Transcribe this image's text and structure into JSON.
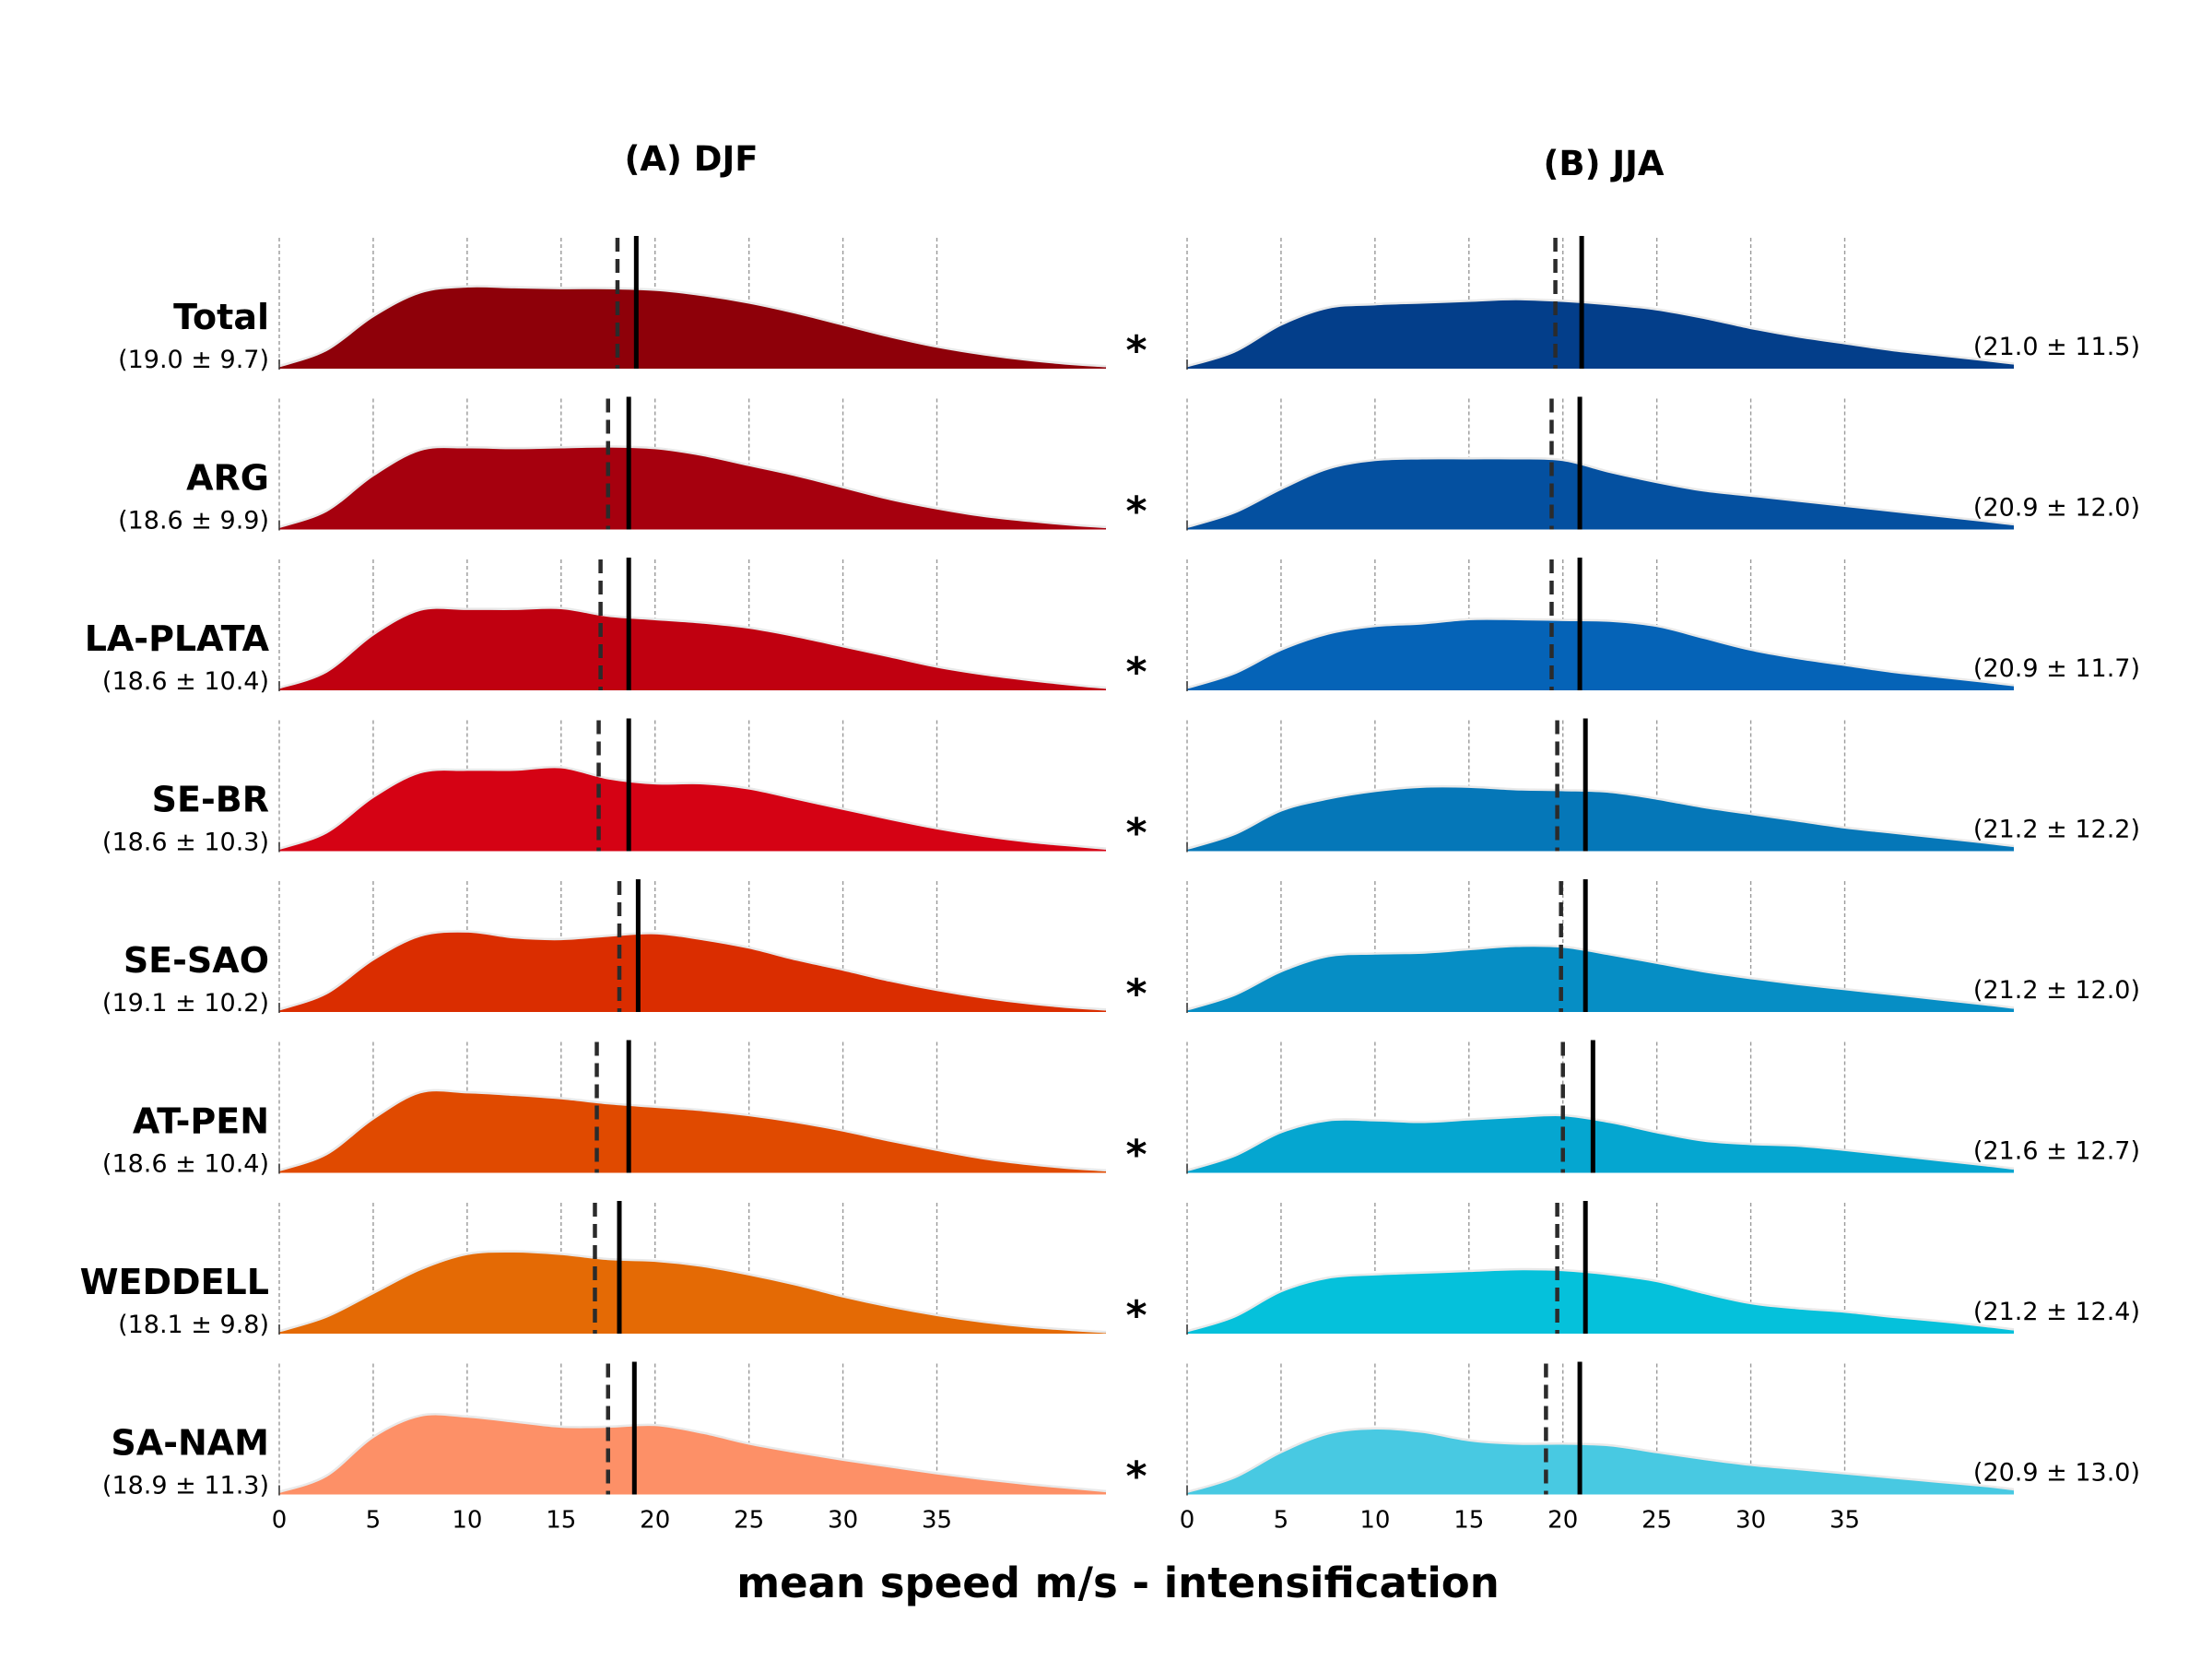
{
  "chart_data": {
    "type": "area",
    "xlabel": "mean speed m/s - intensification",
    "x_ticks": [
      0,
      5,
      10,
      15,
      20,
      25,
      30,
      35
    ],
    "xlim": [
      0,
      44
    ],
    "grid": "vertical dashed",
    "markers": {
      "solid": "mean",
      "dashed": "median"
    },
    "kde_x": [
      0,
      2.5,
      5,
      7.5,
      10,
      12.5,
      15,
      17.5,
      20,
      22.5,
      25,
      27.5,
      30,
      32.5,
      35,
      37.5,
      40,
      42.5,
      44
    ],
    "panels": [
      {
        "title": "(A) DJF",
        "rows": [
          {
            "name": "Total",
            "stats": "(19.0 ± 9.7)",
            "mean": 19.0,
            "median": 18.0,
            "color": "#8e0009",
            "significant": "*",
            "density": [
              0.03,
              0.22,
              0.62,
              0.9,
              0.97,
              0.96,
              0.95,
              0.95,
              0.93,
              0.87,
              0.78,
              0.66,
              0.52,
              0.38,
              0.26,
              0.17,
              0.1,
              0.05,
              0.03
            ]
          },
          {
            "name": "ARG",
            "stats": "(18.6 ± 9.9)",
            "mean": 18.6,
            "median": 17.5,
            "color": "#a6000e",
            "significant": "*",
            "density": [
              0.03,
              0.22,
              0.64,
              0.94,
              0.97,
              0.96,
              0.97,
              0.98,
              0.96,
              0.88,
              0.76,
              0.64,
              0.5,
              0.36,
              0.25,
              0.16,
              0.1,
              0.05,
              0.03
            ]
          },
          {
            "name": "LA-PLATA",
            "stats": "(18.6 ± 10.4)",
            "mean": 18.6,
            "median": 17.1,
            "color": "#c00010",
            "significant": "*",
            "density": [
              0.03,
              0.22,
              0.66,
              0.95,
              0.96,
              0.96,
              0.97,
              0.88,
              0.84,
              0.8,
              0.74,
              0.64,
              0.52,
              0.4,
              0.28,
              0.19,
              0.12,
              0.06,
              0.03
            ]
          },
          {
            "name": "SE-BR",
            "stats": "(18.6 ± 10.3)",
            "mean": 18.6,
            "median": 17.0,
            "color": "#d50214",
            "significant": "*",
            "density": [
              0.03,
              0.22,
              0.64,
              0.93,
              0.96,
              0.96,
              0.99,
              0.86,
              0.8,
              0.8,
              0.74,
              0.62,
              0.5,
              0.38,
              0.27,
              0.18,
              0.11,
              0.06,
              0.03
            ]
          },
          {
            "name": "SE-SAO",
            "stats": "(19.1 ± 10.2)",
            "mean": 19.1,
            "median": 18.1,
            "color": "#da2d00",
            "significant": "*",
            "density": [
              0.03,
              0.22,
              0.62,
              0.9,
              0.95,
              0.88,
              0.86,
              0.9,
              0.93,
              0.86,
              0.76,
              0.62,
              0.5,
              0.37,
              0.26,
              0.17,
              0.1,
              0.05,
              0.03
            ]
          },
          {
            "name": "AT-PEN",
            "stats": "(18.6 ± 10.4)",
            "mean": 18.6,
            "median": 16.9,
            "color": "#e04a00",
            "significant": "*",
            "density": [
              0.03,
              0.22,
              0.64,
              0.95,
              0.95,
              0.92,
              0.88,
              0.82,
              0.78,
              0.74,
              0.68,
              0.6,
              0.5,
              0.38,
              0.27,
              0.17,
              0.1,
              0.05,
              0.03
            ]
          },
          {
            "name": "WEDDELL",
            "stats": "(18.1 ± 9.8)",
            "mean": 18.1,
            "median": 16.8,
            "color": "#e46a05",
            "significant": "*",
            "density": [
              0.03,
              0.2,
              0.48,
              0.76,
              0.94,
              0.97,
              0.94,
              0.88,
              0.86,
              0.8,
              0.7,
              0.58,
              0.44,
              0.32,
              0.22,
              0.14,
              0.08,
              0.04,
              0.02
            ]
          },
          {
            "name": "SA-NAM",
            "stats": "(18.9 ± 11.3)",
            "mean": 18.9,
            "median": 17.5,
            "color": "#fd9067",
            "significant": "*",
            "density": [
              0.03,
              0.22,
              0.68,
              0.93,
              0.92,
              0.86,
              0.8,
              0.8,
              0.82,
              0.73,
              0.6,
              0.5,
              0.41,
              0.33,
              0.25,
              0.18,
              0.12,
              0.07,
              0.04
            ]
          }
        ]
      },
      {
        "title": "(B) JJA",
        "rows": [
          {
            "name": "Total",
            "stats": "(21.0 ± 11.5)",
            "mean": 21.0,
            "median": 19.6,
            "color": "#033e8a",
            "significant": "",
            "density": [
              0.03,
              0.2,
              0.52,
              0.72,
              0.76,
              0.78,
              0.8,
              0.82,
              0.8,
              0.76,
              0.7,
              0.6,
              0.48,
              0.38,
              0.3,
              0.22,
              0.16,
              0.1,
              0.06
            ]
          },
          {
            "name": "ARG",
            "stats": "(20.9 ± 12.0)",
            "mean": 20.9,
            "median": 19.4,
            "color": "#0450a0",
            "significant": "",
            "density": [
              0.03,
              0.2,
              0.48,
              0.72,
              0.82,
              0.84,
              0.84,
              0.84,
              0.82,
              0.68,
              0.56,
              0.46,
              0.4,
              0.34,
              0.28,
              0.22,
              0.16,
              0.1,
              0.06
            ]
          },
          {
            "name": "LA-PLATA",
            "stats": "(20.9 ± 11.7)",
            "mean": 20.9,
            "median": 19.4,
            "color": "#0563b7",
            "significant": "",
            "density": [
              0.03,
              0.2,
              0.48,
              0.67,
              0.76,
              0.79,
              0.84,
              0.84,
              0.83,
              0.82,
              0.76,
              0.62,
              0.48,
              0.38,
              0.3,
              0.22,
              0.16,
              0.1,
              0.06
            ]
          },
          {
            "name": "SE-BR",
            "stats": "(21.2 ± 12.2)",
            "mean": 21.2,
            "median": 19.7,
            "color": "#0577b8",
            "significant": "",
            "density": [
              0.03,
              0.2,
              0.48,
              0.62,
              0.71,
              0.76,
              0.76,
              0.73,
              0.72,
              0.7,
              0.62,
              0.52,
              0.44,
              0.36,
              0.28,
              0.22,
              0.16,
              0.1,
              0.06
            ]
          },
          {
            "name": "SE-SAO",
            "stats": "(21.2 ± 12.0)",
            "mean": 21.2,
            "median": 19.9,
            "color": "#068ec5",
            "significant": "",
            "density": [
              0.03,
              0.2,
              0.48,
              0.66,
              0.69,
              0.7,
              0.74,
              0.78,
              0.77,
              0.68,
              0.58,
              0.48,
              0.4,
              0.33,
              0.27,
              0.21,
              0.15,
              0.09,
              0.05
            ]
          },
          {
            "name": "AT-PEN",
            "stats": "(21.6 ± 12.7)",
            "mean": 21.6,
            "median": 20.0,
            "color": "#05a6d0",
            "significant": "",
            "density": [
              0.03,
              0.2,
              0.48,
              0.62,
              0.62,
              0.6,
              0.63,
              0.66,
              0.68,
              0.6,
              0.48,
              0.38,
              0.34,
              0.32,
              0.27,
              0.21,
              0.15,
              0.09,
              0.05
            ]
          },
          {
            "name": "WEDDELL",
            "stats": "(21.2 ± 12.4)",
            "mean": 21.2,
            "median": 19.7,
            "color": "#05c1db",
            "significant": "",
            "density": [
              0.03,
              0.2,
              0.5,
              0.66,
              0.7,
              0.72,
              0.74,
              0.76,
              0.75,
              0.7,
              0.62,
              0.48,
              0.36,
              0.3,
              0.26,
              0.2,
              0.15,
              0.09,
              0.05
            ]
          },
          {
            "name": "SA-NAM",
            "stats": "(20.9 ± 13.0)",
            "mean": 20.9,
            "median": 19.1,
            "color": "#48c9e2",
            "significant": "",
            "density": [
              0.03,
              0.2,
              0.5,
              0.72,
              0.78,
              0.74,
              0.64,
              0.6,
              0.6,
              0.58,
              0.5,
              0.42,
              0.35,
              0.3,
              0.25,
              0.2,
              0.15,
              0.1,
              0.06
            ]
          }
        ]
      }
    ]
  }
}
